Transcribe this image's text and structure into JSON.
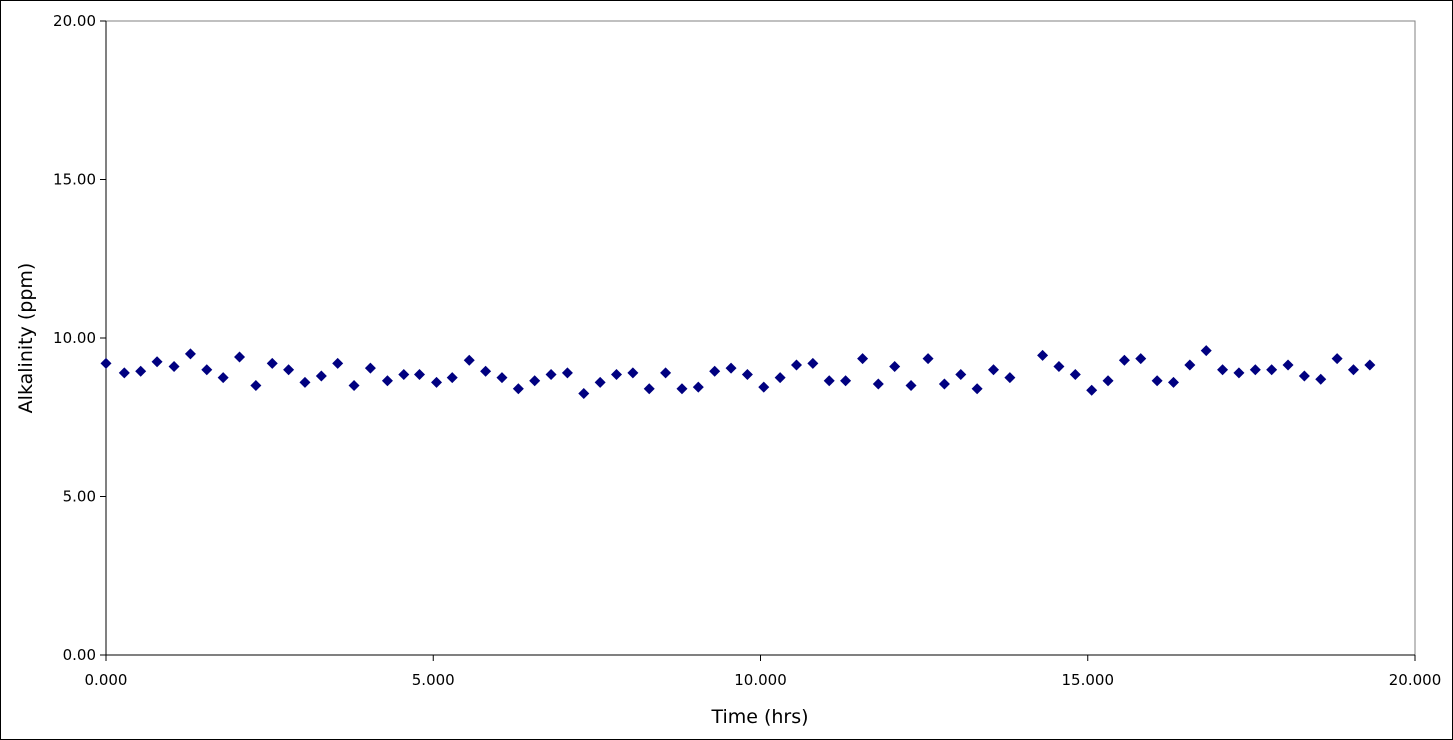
{
  "chart_data": {
    "type": "scatter",
    "title": "",
    "xlabel": "Time (hrs)",
    "ylabel": "Alkalinity (ppm)",
    "xlim": [
      0,
      20
    ],
    "ylim": [
      0,
      20
    ],
    "x_ticks": [
      0,
      5,
      10,
      15,
      20
    ],
    "y_ticks": [
      0,
      5,
      10,
      15,
      20
    ],
    "x_tick_labels": [
      "0.000",
      "5.000",
      "10.000",
      "15.000",
      "20.000"
    ],
    "y_tick_labels": [
      "0.00",
      "5.00",
      "10.00",
      "15.00",
      "20.00"
    ],
    "grid": false,
    "legend": "none",
    "marker": "diamond",
    "marker_color": "#000080",
    "points": [
      {
        "x": 0.0,
        "y": 9.2
      },
      {
        "x": 0.28,
        "y": 8.9
      },
      {
        "x": 0.53,
        "y": 8.95
      },
      {
        "x": 0.78,
        "y": 9.25
      },
      {
        "x": 1.04,
        "y": 9.1
      },
      {
        "x": 1.29,
        "y": 9.5
      },
      {
        "x": 1.54,
        "y": 9.0
      },
      {
        "x": 1.79,
        "y": 8.75
      },
      {
        "x": 2.04,
        "y": 9.4
      },
      {
        "x": 2.29,
        "y": 8.5
      },
      {
        "x": 2.54,
        "y": 9.2
      },
      {
        "x": 2.79,
        "y": 9.0
      },
      {
        "x": 3.04,
        "y": 8.6
      },
      {
        "x": 3.29,
        "y": 8.8
      },
      {
        "x": 3.54,
        "y": 9.2
      },
      {
        "x": 3.79,
        "y": 8.5
      },
      {
        "x": 4.04,
        "y": 9.05
      },
      {
        "x": 4.3,
        "y": 8.65
      },
      {
        "x": 4.55,
        "y": 8.85
      },
      {
        "x": 4.79,
        "y": 8.85
      },
      {
        "x": 5.05,
        "y": 8.6
      },
      {
        "x": 5.29,
        "y": 8.75
      },
      {
        "x": 5.55,
        "y": 9.3
      },
      {
        "x": 5.8,
        "y": 8.95
      },
      {
        "x": 6.05,
        "y": 8.75
      },
      {
        "x": 6.3,
        "y": 8.4
      },
      {
        "x": 6.55,
        "y": 8.65
      },
      {
        "x": 6.8,
        "y": 8.85
      },
      {
        "x": 7.05,
        "y": 8.9
      },
      {
        "x": 7.3,
        "y": 8.25
      },
      {
        "x": 7.55,
        "y": 8.6
      },
      {
        "x": 7.8,
        "y": 8.85
      },
      {
        "x": 8.05,
        "y": 8.9
      },
      {
        "x": 8.3,
        "y": 8.4
      },
      {
        "x": 8.55,
        "y": 8.9
      },
      {
        "x": 8.8,
        "y": 8.4
      },
      {
        "x": 9.05,
        "y": 8.45
      },
      {
        "x": 9.3,
        "y": 8.95
      },
      {
        "x": 9.55,
        "y": 9.05
      },
      {
        "x": 9.8,
        "y": 8.85
      },
      {
        "x": 10.05,
        "y": 8.45
      },
      {
        "x": 10.3,
        "y": 8.75
      },
      {
        "x": 10.55,
        "y": 9.15
      },
      {
        "x": 10.8,
        "y": 9.2
      },
      {
        "x": 11.05,
        "y": 8.65
      },
      {
        "x": 11.3,
        "y": 8.65
      },
      {
        "x": 11.56,
        "y": 9.35
      },
      {
        "x": 11.8,
        "y": 8.55
      },
      {
        "x": 12.05,
        "y": 9.1
      },
      {
        "x": 12.3,
        "y": 8.5
      },
      {
        "x": 12.56,
        "y": 9.35
      },
      {
        "x": 12.81,
        "y": 8.55
      },
      {
        "x": 13.06,
        "y": 8.85
      },
      {
        "x": 13.31,
        "y": 8.4
      },
      {
        "x": 13.56,
        "y": 9.0
      },
      {
        "x": 13.81,
        "y": 8.75
      },
      {
        "x": 14.31,
        "y": 9.45
      },
      {
        "x": 14.56,
        "y": 9.1
      },
      {
        "x": 14.81,
        "y": 8.85
      },
      {
        "x": 15.06,
        "y": 8.35
      },
      {
        "x": 15.31,
        "y": 8.65
      },
      {
        "x": 15.56,
        "y": 9.3
      },
      {
        "x": 15.81,
        "y": 9.35
      },
      {
        "x": 16.06,
        "y": 8.65
      },
      {
        "x": 16.31,
        "y": 8.6
      },
      {
        "x": 16.56,
        "y": 9.15
      },
      {
        "x": 16.81,
        "y": 9.6
      },
      {
        "x": 17.06,
        "y": 9.0
      },
      {
        "x": 17.31,
        "y": 8.9
      },
      {
        "x": 17.56,
        "y": 9.0
      },
      {
        "x": 17.81,
        "y": 9.0
      },
      {
        "x": 18.06,
        "y": 9.15
      },
      {
        "x": 18.31,
        "y": 8.8
      },
      {
        "x": 18.56,
        "y": 8.7
      },
      {
        "x": 18.81,
        "y": 9.35
      },
      {
        "x": 19.06,
        "y": 9.0
      },
      {
        "x": 19.31,
        "y": 9.15
      }
    ]
  }
}
